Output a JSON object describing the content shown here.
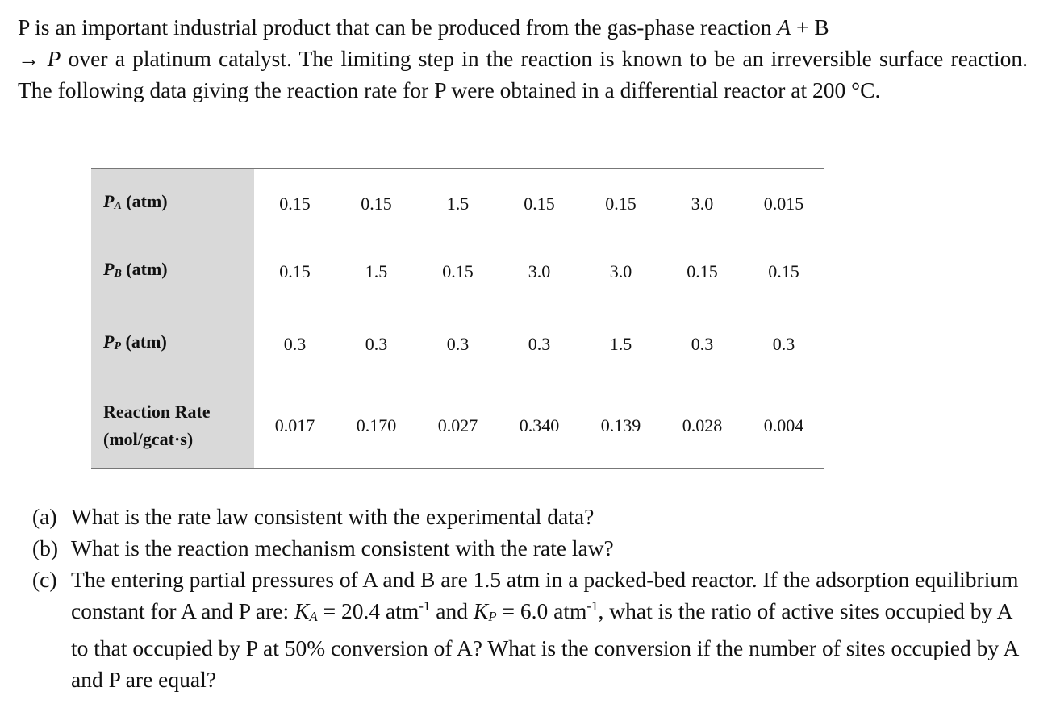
{
  "intro": [
    "P is an important industrial product that can be produced from the gas-phase reaction ",
    "A",
    " + B ",
    "→ ",
    "P",
    " over a platinum catalyst. The limiting step in the reaction is known to be an irreversible surface reaction. The following data giving the reaction rate for P were obtained in a differential reactor at 200 °C."
  ],
  "table": {
    "rows": [
      {
        "symbol": "P",
        "subscript": "A",
        "unit": "(atm)",
        "values": [
          "0.15",
          "0.15",
          "1.5",
          "0.15",
          "0.15",
          "3.0",
          "0.015"
        ]
      },
      {
        "symbol": "P",
        "subscript": "B",
        "unit": "(atm)",
        "values": [
          "0.15",
          "1.5",
          "0.15",
          "3.0",
          "3.0",
          "0.15",
          "0.15"
        ]
      },
      {
        "symbol": "P",
        "subscript": "P",
        "unit": "(atm)",
        "values": [
          "0.3",
          "0.3",
          "0.3",
          "0.3",
          "1.5",
          "0.3",
          "0.3"
        ]
      },
      {
        "label": "Reaction Rate",
        "unit": "(mol/gcat·s)",
        "values": [
          "0.017",
          "0.170",
          "0.027",
          "0.340",
          "0.139",
          "0.028",
          "0.004"
        ]
      }
    ]
  },
  "questions": [
    {
      "label": "(a)",
      "text": [
        "What is the rate law consistent with the experimental data?"
      ]
    },
    {
      "label": "(b)",
      "text": [
        "What is the reaction mechanism consistent with the rate law?"
      ]
    },
    {
      "label": "(c)",
      "text": [
        "The entering partial pressures of A and B are 1.5 atm in a packed-bed reactor. If the adsorption equilibrium constant for A and P are: ",
        "K",
        "A",
        " = 20.4 atm",
        "-1",
        " and ",
        "K",
        "P",
        " = 6.0 atm",
        "-1",
        ", what is the ratio of active sites occupied by A to that occupied by P at 50% conversion of A? What is the conversion if the number of sites occupied by A and P are equal?"
      ]
    }
  ]
}
